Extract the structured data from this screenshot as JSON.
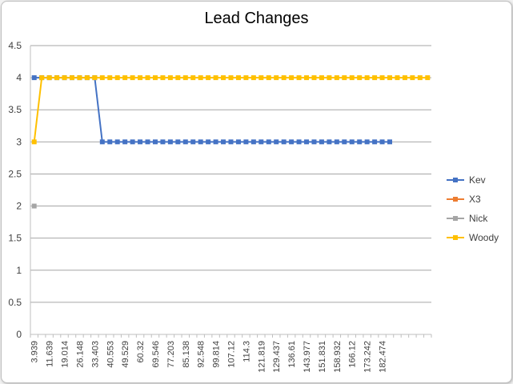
{
  "chart_data": {
    "type": "line",
    "title": "Lead Changes",
    "xlabel": "",
    "ylabel": "",
    "ylim": [
      0,
      4.5
    ],
    "y_ticks": [
      "0",
      "0.5",
      "1",
      "1.5",
      "2",
      "2.5",
      "3",
      "3.5",
      "4",
      "4.5"
    ],
    "x_tick_labels": [
      "3.939",
      "11.639",
      "19.014",
      "26.148",
      "33.403",
      "40.553",
      "49.529",
      "60.32",
      "69.546",
      "77.203",
      "85.138",
      "92.548",
      "99.814",
      "107.12",
      "114.3",
      "121.819",
      "129.437",
      "136.61",
      "143.977",
      "151.831",
      "158.932",
      "166.12",
      "173.242",
      "182.474"
    ],
    "category_count": 53,
    "grid": "horizontal",
    "legend_position": "right",
    "series": [
      {
        "name": "Kev",
        "color": "#4472c4",
        "values": [
          4,
          4,
          4,
          4,
          4,
          4,
          4,
          4,
          4,
          3,
          3,
          3,
          3,
          3,
          3,
          3,
          3,
          3,
          3,
          3,
          3,
          3,
          3,
          3,
          3,
          3,
          3,
          3,
          3,
          3,
          3,
          3,
          3,
          3,
          3,
          3,
          3,
          3,
          3,
          3,
          3,
          3,
          3,
          3,
          3,
          3,
          3,
          3
        ]
      },
      {
        "name": "X3",
        "color": "#ed7d31",
        "values": []
      },
      {
        "name": "Nick",
        "color": "#a5a5a5",
        "values": [
          2
        ]
      },
      {
        "name": "Woody",
        "color": "#ffc000",
        "values": [
          3,
          4,
          4,
          4,
          4,
          4,
          4,
          4,
          4,
          4,
          4,
          4,
          4,
          4,
          4,
          4,
          4,
          4,
          4,
          4,
          4,
          4,
          4,
          4,
          4,
          4,
          4,
          4,
          4,
          4,
          4,
          4,
          4,
          4,
          4,
          4,
          4,
          4,
          4,
          4,
          4,
          4,
          4,
          4,
          4,
          4,
          4,
          4,
          4,
          4,
          4,
          4,
          4
        ]
      }
    ]
  }
}
